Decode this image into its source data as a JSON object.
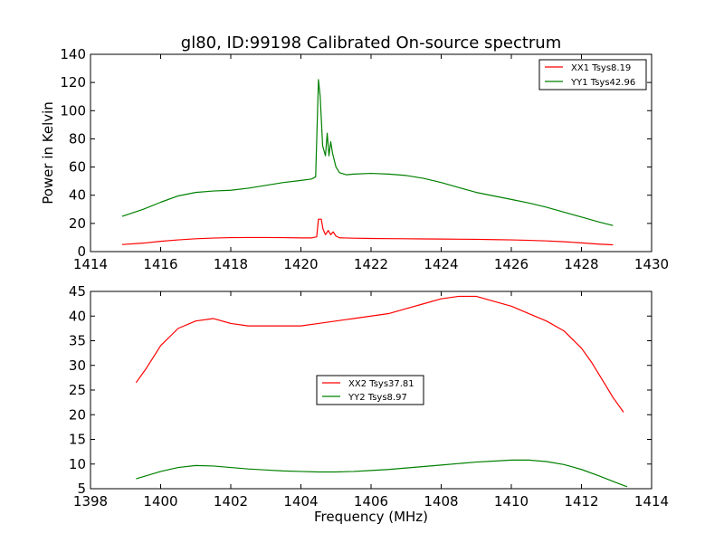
{
  "figure": {
    "title": "gl80, ID:99198 Calibrated On-source spectrum",
    "xlabel": "Frequency (MHz)"
  },
  "chart_data": [
    {
      "type": "line",
      "title": "gl80, ID:99198 Calibrated On-source spectrum",
      "xlabel": "",
      "ylabel": "Power in Kelvin",
      "xlim": [
        1414,
        1430
      ],
      "ylim": [
        0,
        140
      ],
      "xticks": [
        "1414",
        "1416",
        "1418",
        "1420",
        "1422",
        "1424",
        "1426",
        "1428",
        "1430"
      ],
      "yticks": [
        "0",
        "20",
        "40",
        "60",
        "80",
        "100",
        "120",
        "140"
      ],
      "grid": false,
      "legend_position": "top-right",
      "series": [
        {
          "name": "XX1 Tsys8.19",
          "color": "#ff0000",
          "x": [
            1414.9,
            1415.5,
            1416.0,
            1416.5,
            1417.0,
            1417.5,
            1418.0,
            1418.5,
            1419.0,
            1419.5,
            1420.0,
            1420.3,
            1420.45,
            1420.5,
            1420.58,
            1420.63,
            1420.7,
            1420.78,
            1420.85,
            1420.92,
            1421.0,
            1421.1,
            1421.5,
            1422.0,
            1422.5,
            1423.0,
            1423.5,
            1424.0,
            1424.5,
            1425.0,
            1425.5,
            1426.0,
            1426.5,
            1427.0,
            1427.5,
            1428.0,
            1428.5,
            1428.9
          ],
          "y": [
            5.0,
            6.0,
            7.3,
            8.3,
            9.1,
            9.6,
            9.9,
            10.0,
            10.0,
            9.9,
            9.7,
            9.7,
            10.5,
            23.0,
            23.0,
            16.0,
            12.0,
            15.0,
            12.0,
            14.0,
            11.0,
            9.8,
            9.5,
            9.3,
            9.2,
            9.1,
            9.0,
            8.9,
            8.8,
            8.7,
            8.5,
            8.3,
            8.0,
            7.6,
            7.0,
            6.2,
            5.3,
            4.8
          ]
        },
        {
          "name": "YY1 Tsys42.96",
          "color": "#008000",
          "x": [
            1414.9,
            1415.5,
            1416.0,
            1416.5,
            1417.0,
            1417.5,
            1418.0,
            1418.5,
            1419.0,
            1419.5,
            1420.0,
            1420.3,
            1420.42,
            1420.5,
            1420.55,
            1420.62,
            1420.7,
            1420.75,
            1420.8,
            1420.85,
            1420.9,
            1420.95,
            1421.0,
            1421.1,
            1421.3,
            1421.5,
            1422.0,
            1422.5,
            1423.0,
            1423.5,
            1424.0,
            1424.5,
            1425.0,
            1425.5,
            1426.0,
            1426.5,
            1427.0,
            1427.5,
            1428.0,
            1428.5,
            1428.9
          ],
          "y": [
            25.0,
            30.0,
            35.0,
            39.5,
            42.0,
            43.0,
            43.5,
            45.0,
            47.0,
            49.0,
            50.5,
            51.5,
            53.0,
            122.0,
            110.0,
            75.0,
            68.0,
            84.0,
            68.0,
            78.0,
            70.0,
            65.0,
            60.0,
            56.0,
            54.5,
            55.0,
            55.5,
            55.0,
            54.0,
            52.0,
            49.0,
            45.5,
            42.0,
            39.5,
            37.0,
            34.5,
            31.5,
            28.0,
            24.5,
            21.0,
            18.5
          ]
        }
      ]
    },
    {
      "type": "line",
      "title": "",
      "xlabel": "Frequency (MHz)",
      "ylabel": "",
      "xlim": [
        1398,
        1414
      ],
      "ylim": [
        5,
        45
      ],
      "xticks": [
        "1398",
        "1400",
        "1402",
        "1404",
        "1406",
        "1408",
        "1410",
        "1412",
        "1414"
      ],
      "yticks": [
        "5",
        "10",
        "15",
        "20",
        "25",
        "30",
        "35",
        "40",
        "45"
      ],
      "grid": false,
      "legend_position": "center",
      "series": [
        {
          "name": "XX2 Tsys37.81",
          "color": "#ff0000",
          "x": [
            1399.3,
            1399.6,
            1400.0,
            1400.5,
            1401.0,
            1401.5,
            1402.0,
            1402.5,
            1403.0,
            1403.5,
            1404.0,
            1404.5,
            1405.0,
            1405.5,
            1406.0,
            1406.5,
            1407.0,
            1407.5,
            1408.0,
            1408.5,
            1409.0,
            1409.5,
            1410.0,
            1410.5,
            1411.0,
            1411.5,
            1412.0,
            1412.3,
            1412.6,
            1412.9,
            1413.2
          ],
          "y": [
            26.5,
            29.5,
            34.0,
            37.5,
            39.0,
            39.5,
            38.5,
            38.0,
            38.0,
            38.0,
            38.0,
            38.5,
            39.0,
            39.5,
            40.0,
            40.5,
            41.5,
            42.5,
            43.5,
            44.0,
            44.0,
            43.0,
            42.0,
            40.5,
            39.0,
            37.0,
            33.5,
            30.5,
            27.0,
            23.5,
            20.5
          ]
        },
        {
          "name": "YY2 Tsys8.97",
          "color": "#008000",
          "x": [
            1399.3,
            1400.0,
            1400.5,
            1401.0,
            1401.5,
            1402.0,
            1402.5,
            1403.0,
            1403.5,
            1404.0,
            1404.5,
            1405.0,
            1405.5,
            1406.0,
            1406.5,
            1407.0,
            1407.5,
            1408.0,
            1408.5,
            1409.0,
            1409.5,
            1410.0,
            1410.5,
            1411.0,
            1411.5,
            1412.0,
            1412.5,
            1413.0,
            1413.3
          ],
          "y": [
            7.0,
            8.5,
            9.3,
            9.7,
            9.6,
            9.3,
            9.0,
            8.8,
            8.6,
            8.5,
            8.4,
            8.4,
            8.5,
            8.7,
            8.9,
            9.2,
            9.5,
            9.8,
            10.1,
            10.4,
            10.6,
            10.8,
            10.8,
            10.5,
            9.9,
            8.9,
            7.6,
            6.2,
            5.4
          ]
        }
      ]
    }
  ]
}
